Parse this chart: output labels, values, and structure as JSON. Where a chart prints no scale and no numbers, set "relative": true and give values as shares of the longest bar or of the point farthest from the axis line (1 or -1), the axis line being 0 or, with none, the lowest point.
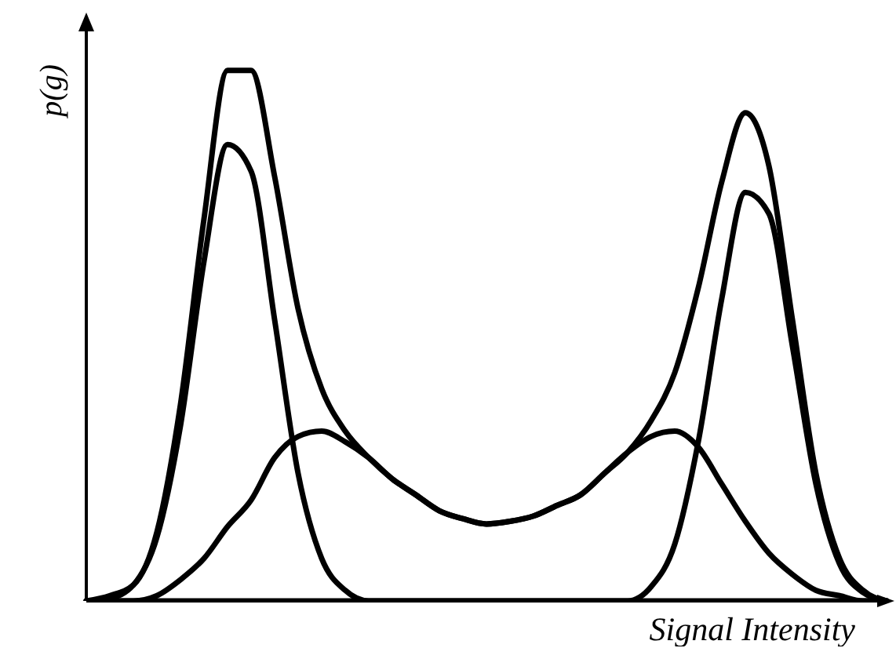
{
  "chart_data": {
    "type": "line",
    "relative": true,
    "marker": "none",
    "xlabel": "Signal Intensity",
    "ylabel": "p(g)",
    "categories": [
      null,
      null,
      null,
      null,
      null,
      null,
      null,
      null,
      null,
      null,
      null,
      null,
      null,
      null,
      null,
      null,
      null,
      null,
      null,
      null,
      null,
      null,
      null,
      null,
      null,
      null,
      null,
      null,
      null,
      null,
      null,
      null,
      null,
      null,
      null
    ],
    "series": [
      {
        "color": "#000000",
        "values": [
          0,
          0.01,
          0.03,
          0.13,
          0.37,
          0.72,
          1.0,
          1.0,
          0.8,
          0.55,
          0.4,
          0.32,
          0.27,
          0.23,
          0.2,
          0.17,
          0.155,
          0.145,
          0.15,
          0.16,
          0.18,
          0.2,
          0.24,
          0.28,
          0.34,
          0.43,
          0.59,
          0.79,
          0.92,
          0.82,
          0.53,
          0.24,
          0.08,
          0.02,
          0
        ]
      },
      {
        "color": "#000000",
        "values": [
          0,
          0.005,
          0.03,
          0.12,
          0.33,
          0.64,
          0.86,
          0.81,
          0.53,
          0.24,
          0.08,
          0.02,
          0,
          0,
          0,
          0,
          0,
          0,
          0,
          0,
          0,
          0,
          0,
          0,
          0,
          0,
          0,
          0,
          0,
          0,
          0,
          0,
          0,
          0,
          0
        ]
      },
      {
        "color": "#000000",
        "values": [
          0,
          0,
          0,
          0.01,
          0.04,
          0.08,
          0.14,
          0.19,
          0.27,
          0.31,
          0.32,
          0.3,
          0.27,
          0.23,
          0.2,
          0.17,
          0.155,
          0.145,
          0.15,
          0.16,
          0.18,
          0.2,
          0.24,
          0.28,
          0.31,
          0.32,
          0.29,
          0.22,
          0.15,
          0.09,
          0.05,
          0.02,
          0.01,
          0,
          0
        ]
      },
      {
        "color": "#000000",
        "values": [
          0,
          0,
          0,
          0,
          0,
          0,
          0,
          0,
          0,
          0,
          0,
          0,
          0,
          0,
          0,
          0,
          0,
          0,
          0,
          0,
          0,
          0,
          0,
          0,
          0.027,
          0.107,
          0.3,
          0.57,
          0.77,
          0.73,
          0.48,
          0.22,
          0.07,
          0.016,
          0
        ]
      }
    ]
  }
}
